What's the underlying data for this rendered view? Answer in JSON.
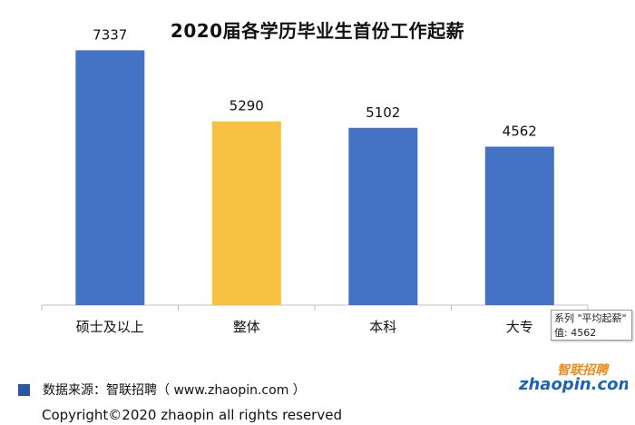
{
  "chart_data": {
    "type": "bar",
    "title": "2020届各学历毕业生首份工作起薪",
    "categories": [
      "硕士及以上",
      "整体",
      "本科",
      "大专"
    ],
    "values": [
      7337,
      5290,
      5102,
      4562
    ],
    "value_labels": [
      "7337",
      "5290",
      "5102",
      "4562"
    ],
    "bar_colors": [
      "#4472c4",
      "#f7c242",
      "#4472c4",
      "#4472c4"
    ],
    "ylim": [
      0,
      8000
    ],
    "grid": false,
    "legend": "none"
  },
  "tooltip": {
    "line1": "系列 \"平均起薪\"",
    "line2": "值: 4562"
  },
  "footer": {
    "source": "数据来源：智联招聘（ www.zhaopin.com ）",
    "copyright": "Copyright©2020 zhaopin all rights reserved",
    "square_color": "#2a56a3"
  },
  "logo": {
    "brand_cn": "智联招聘",
    "brand_en": "zhaopin.com",
    "colors": {
      "orange": "#f08a1c",
      "blue": "#1a64b8"
    }
  }
}
